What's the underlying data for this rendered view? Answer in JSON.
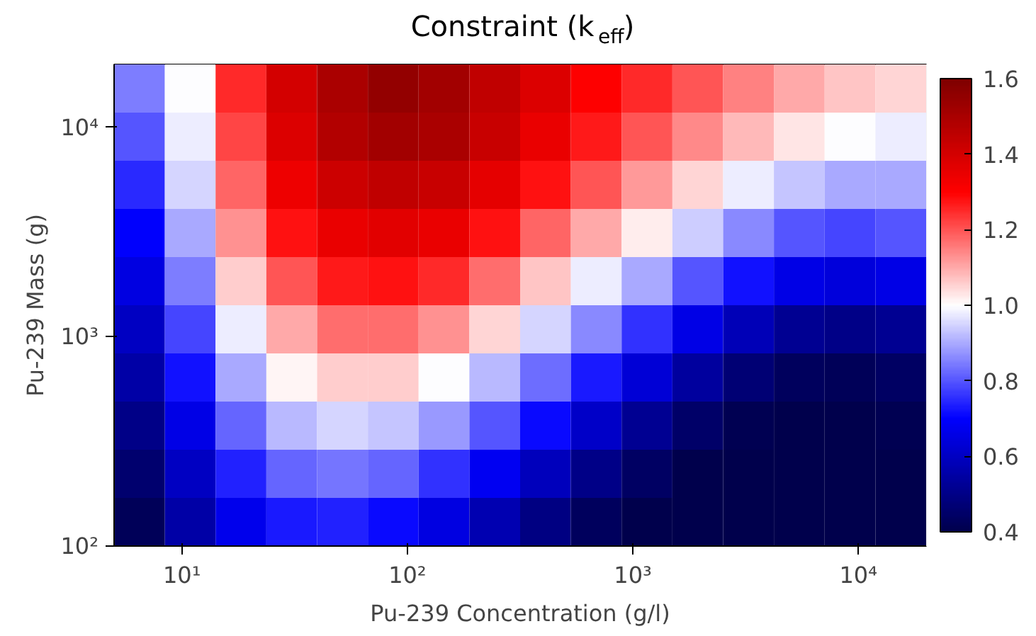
{
  "chart_data": {
    "type": "heatmap",
    "title": "Constraint (k$_{eff}$)",
    "xlabel": "Pu-239 Concentration (g/l)",
    "ylabel": "Pu-239 Mass (g)",
    "cells": [
      [
        0.85,
        1.0,
        1.25,
        1.4,
        1.5,
        1.55,
        1.52,
        1.45,
        1.38,
        1.3,
        1.25,
        1.2,
        1.15,
        1.1,
        1.07,
        1.05
      ],
      [
        0.8,
        0.98,
        1.22,
        1.38,
        1.48,
        1.52,
        1.5,
        1.43,
        1.35,
        1.27,
        1.2,
        1.14,
        1.08,
        1.03,
        1.0,
        0.98
      ],
      [
        0.75,
        0.95,
        1.18,
        1.34,
        1.42,
        1.45,
        1.43,
        1.36,
        1.28,
        1.2,
        1.12,
        1.05,
        0.98,
        0.93,
        0.9,
        0.9
      ],
      [
        0.7,
        0.9,
        1.13,
        1.28,
        1.35,
        1.37,
        1.35,
        1.28,
        1.18,
        1.1,
        1.02,
        0.94,
        0.86,
        0.8,
        0.78,
        0.8
      ],
      [
        0.65,
        0.85,
        1.06,
        1.2,
        1.27,
        1.28,
        1.25,
        1.17,
        1.07,
        0.98,
        0.9,
        0.8,
        0.72,
        0.66,
        0.64,
        0.66
      ],
      [
        0.6,
        0.78,
        0.98,
        1.1,
        1.17,
        1.17,
        1.13,
        1.05,
        0.95,
        0.86,
        0.76,
        0.66,
        0.58,
        0.52,
        0.5,
        0.52
      ],
      [
        0.55,
        0.72,
        0.9,
        1.01,
        1.06,
        1.06,
        1.0,
        0.92,
        0.83,
        0.73,
        0.63,
        0.54,
        0.47,
        0.43,
        0.42,
        0.44
      ],
      [
        0.5,
        0.66,
        0.82,
        0.92,
        0.95,
        0.93,
        0.88,
        0.8,
        0.71,
        0.61,
        0.52,
        0.45,
        0.41,
        0.4,
        0.4,
        0.41
      ],
      [
        0.46,
        0.6,
        0.74,
        0.82,
        0.84,
        0.82,
        0.76,
        0.68,
        0.59,
        0.5,
        0.44,
        0.4,
        0.4,
        0.4,
        0.4,
        0.4
      ],
      [
        0.42,
        0.55,
        0.67,
        0.73,
        0.74,
        0.71,
        0.65,
        0.57,
        0.49,
        0.43,
        0.4,
        0.4,
        0.4,
        0.4,
        0.4,
        0.4
      ]
    ],
    "xlim": [
      5,
      20000
    ],
    "ylim": [
      100,
      20000
    ],
    "log": "xy",
    "xticks": [
      {
        "value": 10,
        "label": "10¹"
      },
      {
        "value": 100,
        "label": "10²"
      },
      {
        "value": 1000,
        "label": "10³"
      },
      {
        "value": 10000,
        "label": "10⁴"
      }
    ],
    "yticks": [
      {
        "value": 100,
        "label": "10²"
      },
      {
        "value": 1000,
        "label": "10³"
      },
      {
        "value": 10000,
        "label": "10⁴"
      }
    ],
    "clim": [
      0.4,
      1.6
    ],
    "cticks": [
      0.4,
      0.6,
      0.8,
      {
        "value": 1.0,
        "label": "1.0"
      },
      1.2,
      1.4,
      1.6
    ]
  }
}
